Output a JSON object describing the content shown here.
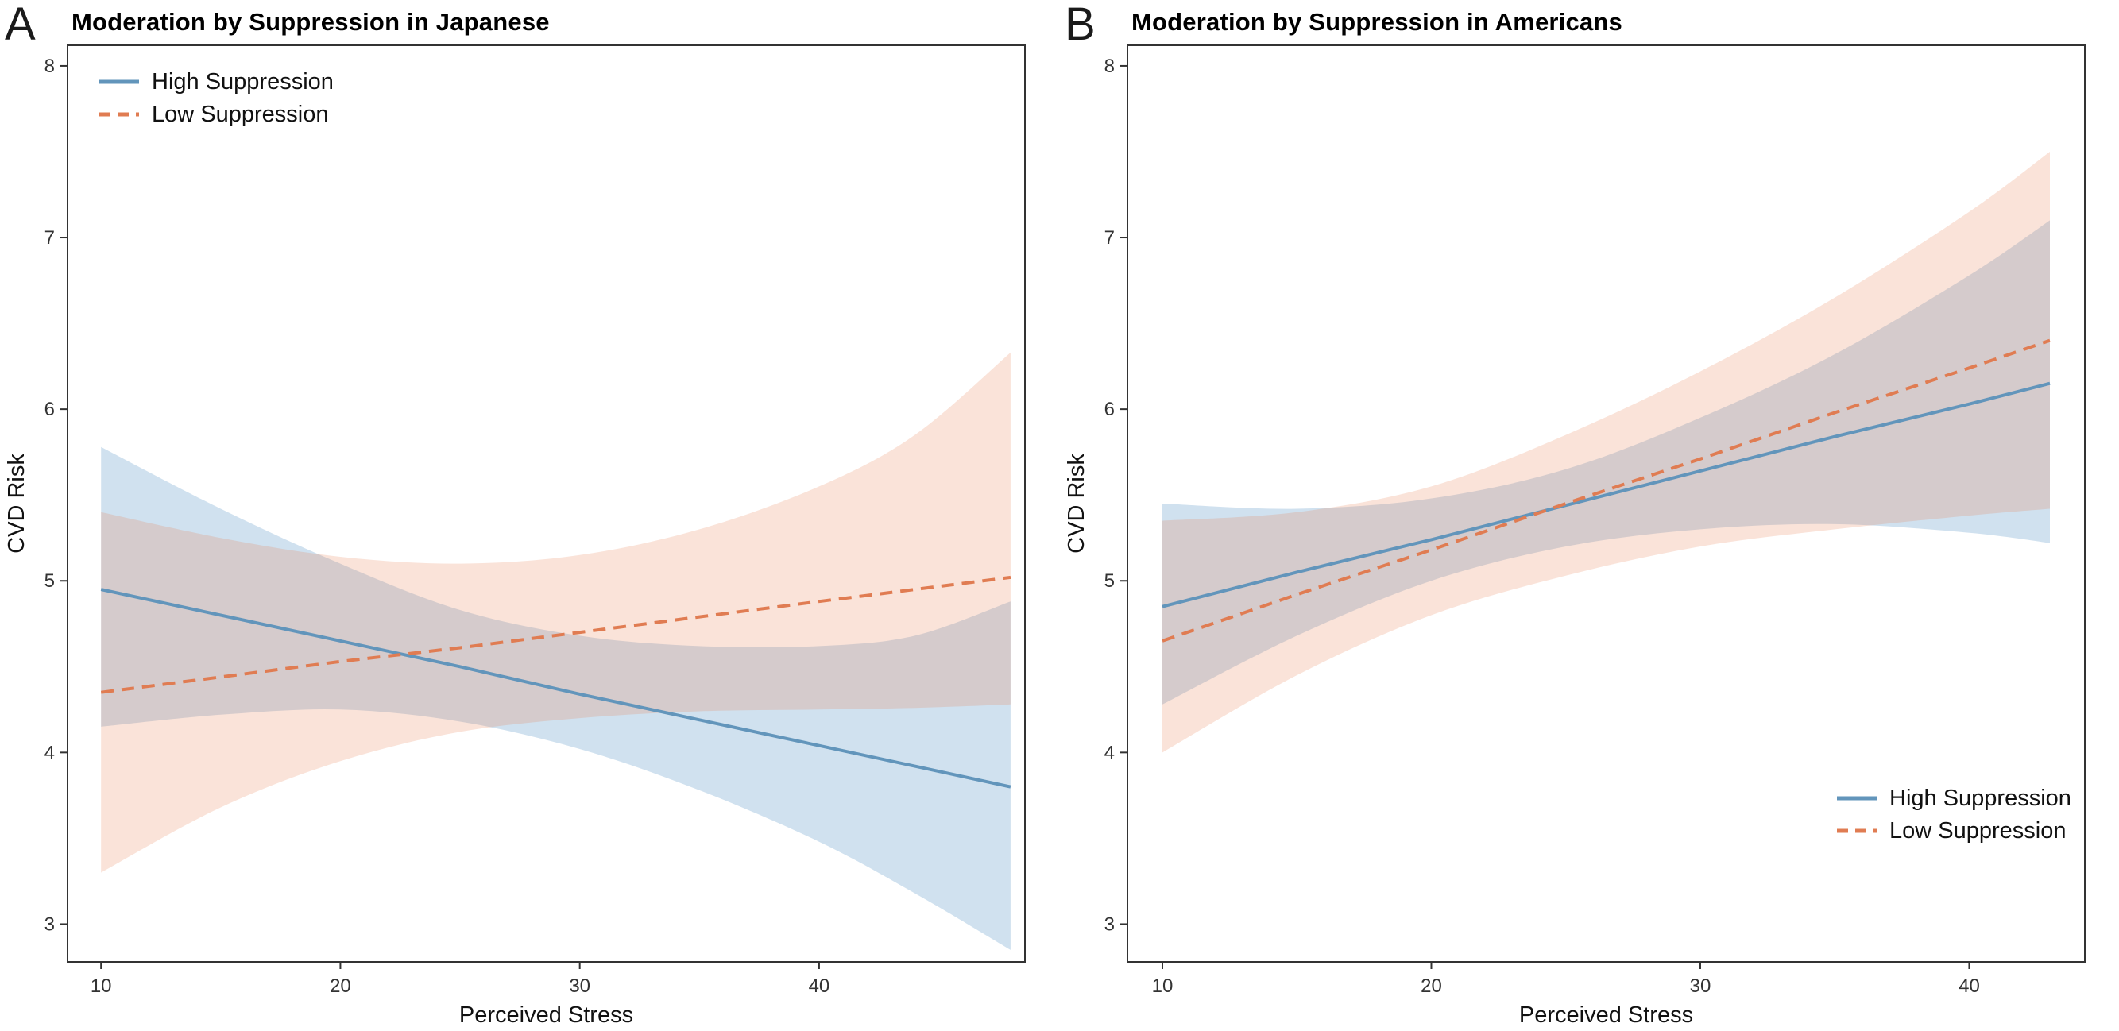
{
  "page": {
    "background": "#ffffff"
  },
  "chart_data": [
    {
      "type": "line",
      "panel_label": "A",
      "title": "Moderation by Suppression in Japanese",
      "xlabel": "Perceived Stress",
      "ylabel": "CVD Risk",
      "xlim": [
        8.6,
        48.6
      ],
      "ylim": [
        2.78,
        8.12
      ],
      "xticks": [
        10,
        20,
        30,
        40
      ],
      "yticks": [
        3,
        4,
        5,
        6,
        7,
        8
      ],
      "grid": false,
      "legend_position": "top-left",
      "series": [
        {
          "name": "High Suppression",
          "line_style": "solid",
          "color": "#6295bb",
          "band_color": "rgba(109,163,204,0.32)",
          "x": [
            10,
            15,
            20,
            25,
            30,
            35,
            40,
            44,
            48
          ],
          "y": [
            4.95,
            4.8,
            4.65,
            4.5,
            4.34,
            4.19,
            4.04,
            3.92,
            3.8
          ],
          "ci_upper": [
            5.78,
            5.42,
            5.1,
            4.83,
            4.68,
            4.62,
            4.62,
            4.68,
            4.88
          ],
          "ci_lower": [
            4.15,
            4.22,
            4.25,
            4.18,
            4.02,
            3.78,
            3.48,
            3.18,
            2.85
          ]
        },
        {
          "name": "Low Suppression",
          "line_style": "dashed",
          "color": "#e07c52",
          "band_color": "rgba(233,126,82,0.22)",
          "x": [
            10,
            15,
            20,
            25,
            30,
            35,
            40,
            44,
            48
          ],
          "y": [
            4.35,
            4.44,
            4.53,
            4.61,
            4.7,
            4.79,
            4.88,
            4.95,
            5.02
          ],
          "ci_upper": [
            5.4,
            5.25,
            5.14,
            5.1,
            5.15,
            5.3,
            5.55,
            5.85,
            6.33
          ],
          "ci_lower": [
            3.3,
            3.68,
            3.95,
            4.12,
            4.2,
            4.24,
            4.25,
            4.26,
            4.28
          ]
        }
      ]
    },
    {
      "type": "line",
      "panel_label": "B",
      "title": "Moderation by Suppression in Americans",
      "xlabel": "Perceived Stress",
      "ylabel": "CVD Risk",
      "xlim": [
        8.7,
        44.3
      ],
      "ylim": [
        2.78,
        8.12
      ],
      "xticks": [
        10,
        20,
        30,
        40
      ],
      "yticks": [
        3,
        4,
        5,
        6,
        7,
        8
      ],
      "grid": false,
      "legend_position": "bottom-right",
      "series": [
        {
          "name": "High Suppression",
          "line_style": "solid",
          "color": "#6295bb",
          "band_color": "rgba(109,163,204,0.32)",
          "x": [
            10,
            15,
            20,
            25,
            30,
            35,
            40,
            43
          ],
          "y": [
            4.85,
            5.05,
            5.24,
            5.44,
            5.64,
            5.84,
            6.03,
            6.15
          ],
          "ci_upper": [
            5.45,
            5.42,
            5.48,
            5.65,
            5.95,
            6.32,
            6.78,
            7.1
          ],
          "ci_lower": [
            4.28,
            4.68,
            5.0,
            5.2,
            5.3,
            5.33,
            5.28,
            5.22
          ]
        },
        {
          "name": "Low Suppression",
          "line_style": "dashed",
          "color": "#e07c52",
          "band_color": "rgba(233,126,82,0.22)",
          "x": [
            10,
            15,
            20,
            25,
            30,
            35,
            40,
            43
          ],
          "y": [
            4.65,
            4.92,
            5.18,
            5.45,
            5.71,
            5.98,
            6.24,
            6.4
          ],
          "ci_upper": [
            5.35,
            5.4,
            5.55,
            5.85,
            6.22,
            6.65,
            7.15,
            7.5
          ],
          "ci_lower": [
            4.0,
            4.45,
            4.8,
            5.03,
            5.2,
            5.3,
            5.38,
            5.42
          ]
        }
      ]
    }
  ]
}
